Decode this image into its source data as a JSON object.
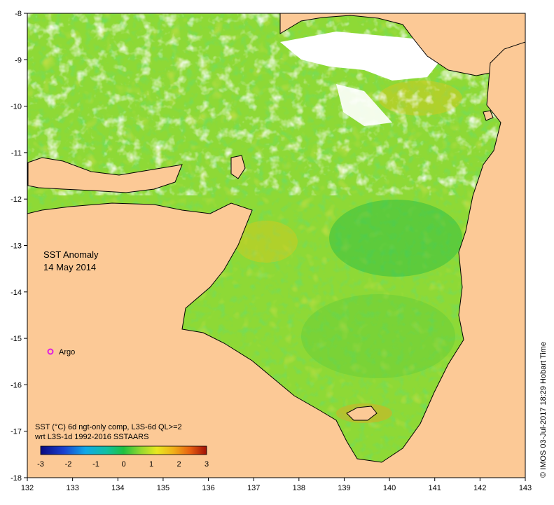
{
  "map": {
    "title_line1": "SST Anomaly",
    "title_line2": "14 May 2014",
    "argo_label": "Argo",
    "credit": "© IMOS 03-Jul-2017 18:29 Hobart Time",
    "x_ticks": [
      "132",
      "133",
      "134",
      "135",
      "136",
      "137",
      "138",
      "139",
      "140",
      "141",
      "142",
      "143"
    ],
    "y_ticks": [
      "-8",
      "-9",
      "-10",
      "-11",
      "-12",
      "-13",
      "-14",
      "-15",
      "-16",
      "-17",
      "-18"
    ],
    "x_range": [
      132,
      143
    ],
    "y_range": [
      -18,
      -8
    ],
    "legend": {
      "line1": "SST (°C) 6d ngt-only comp, L3S-6d QL>=2",
      "line2": "wrt L3S-1d 1992-2016 SSTAARS",
      "ticks": [
        "-3",
        "-2",
        "-1",
        "0",
        "1",
        "2",
        "3"
      ]
    },
    "colors": {
      "land": "#fcc996",
      "coast": "#000000",
      "argo_marker": "#e020e0",
      "anomaly_main": "#8ed936",
      "anomaly_warm": "#f2c418",
      "anomaly_cool": "#22bb44"
    }
  }
}
